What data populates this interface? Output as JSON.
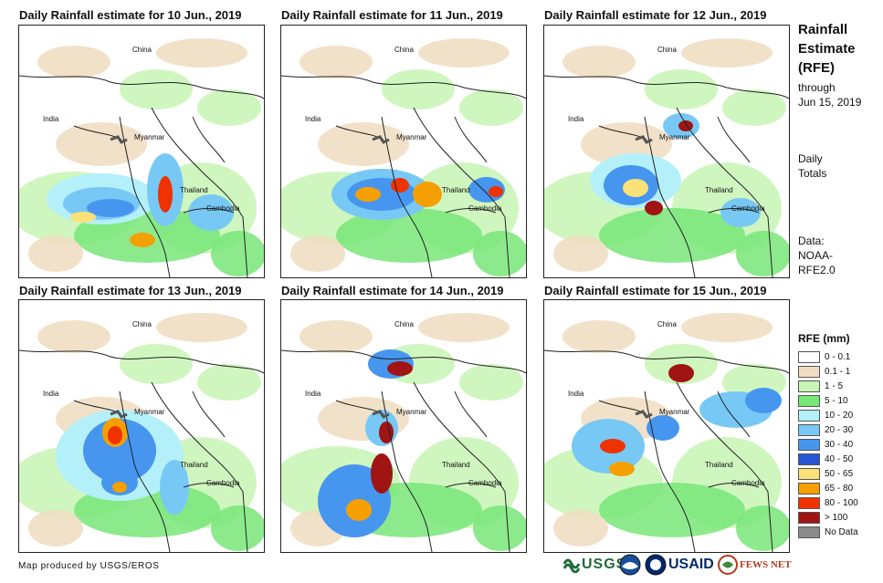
{
  "panels": [
    {
      "title": "Daily Rainfall estimate for 10 Jun., 2019"
    },
    {
      "title": "Daily Rainfall estimate for 11 Jun., 2019"
    },
    {
      "title": "Daily Rainfall estimate for 12 Jun., 2019"
    },
    {
      "title": "Daily Rainfall estimate for 13 Jun., 2019"
    },
    {
      "title": "Daily Rainfall estimate for 14 Jun., 2019"
    },
    {
      "title": "Daily Rainfall estimate for 15 Jun., 2019"
    }
  ],
  "place_labels": {
    "china": "China",
    "india": "India",
    "myanmar": "Myanmar",
    "thailand": "Thailand",
    "cambodia": "Cambodia"
  },
  "side": {
    "title_line1": "Rainfall",
    "title_line2": "Estimate",
    "title_line3": "(RFE)",
    "through": "through",
    "date": "Jun 15, 2019",
    "daily": "Daily",
    "totals": "Totals",
    "data_label": "Data:",
    "data_source_1": "NOAA-",
    "data_source_2": "RFE2.0"
  },
  "legend": {
    "title": "RFE (mm)",
    "items": [
      {
        "label": "0 - 0.1",
        "color": "#ffffff"
      },
      {
        "label": "0.1 - 1",
        "color": "#f0dcc0"
      },
      {
        "label": "1 - 5",
        "color": "#c8f5b4"
      },
      {
        "label": "5 - 10",
        "color": "#78e678"
      },
      {
        "label": "10 - 20",
        "color": "#b4f0fa"
      },
      {
        "label": "20 - 30",
        "color": "#78c8f5"
      },
      {
        "label": "30 - 40",
        "color": "#4696f0"
      },
      {
        "label": "40 - 50",
        "color": "#2855d2"
      },
      {
        "label": "50 - 65",
        "color": "#fae178"
      },
      {
        "label": "65 - 80",
        "color": "#f5a000"
      },
      {
        "label": "80 - 100",
        "color": "#f03200"
      },
      {
        "label": "> 100",
        "color": "#a01414"
      },
      {
        "label": "No Data",
        "color": "#8c8c8c"
      }
    ]
  },
  "footer": {
    "credit": "Map produced by USGS/EROS",
    "usgs": "USGS",
    "usaid": "USAID",
    "fewsnet": "FEWS NET"
  }
}
